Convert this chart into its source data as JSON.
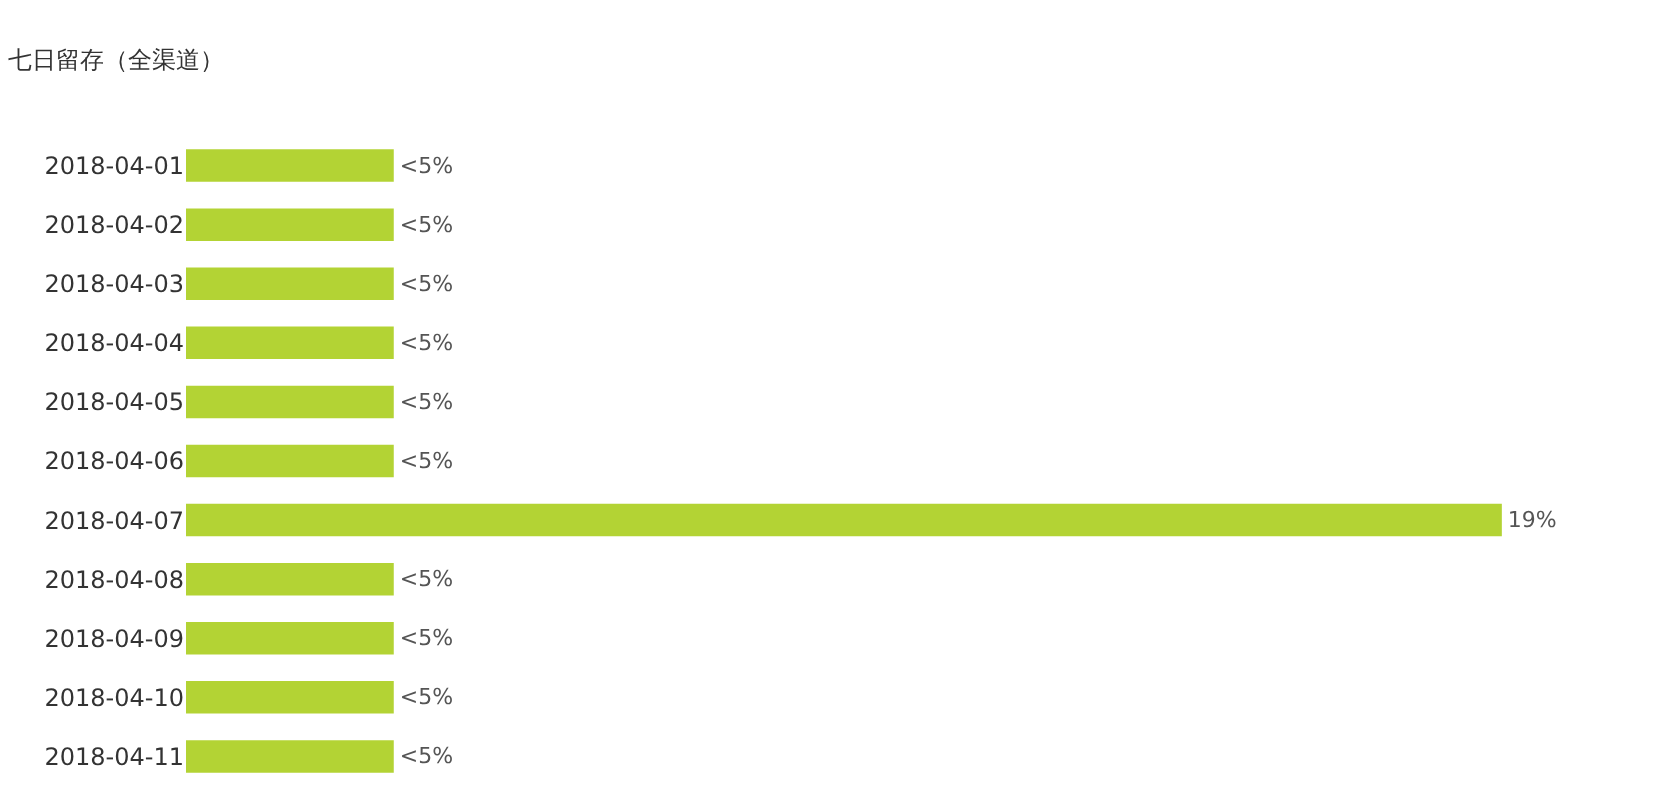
{
  "chart_data": {
    "type": "bar",
    "orientation": "horizontal",
    "title": "七日留存（全渠道）",
    "categories": [
      "2018-04-01",
      "2018-04-02",
      "2018-04-03",
      "2018-04-04",
      "2018-04-05",
      "2018-04-06",
      "2018-04-07",
      "2018-04-08",
      "2018-04-09",
      "2018-04-10",
      "2018-04-11"
    ],
    "values": [
      3,
      3,
      3,
      3,
      3,
      3,
      19,
      3,
      3,
      3,
      3
    ],
    "value_labels": [
      "<5%",
      "<5%",
      "<5%",
      "<5%",
      "<5%",
      "<5%",
      "19%",
      "<5%",
      "<5%",
      "<5%",
      "<5%"
    ],
    "color": "#b3d334",
    "tick_labels": "y",
    "legend": false
  }
}
